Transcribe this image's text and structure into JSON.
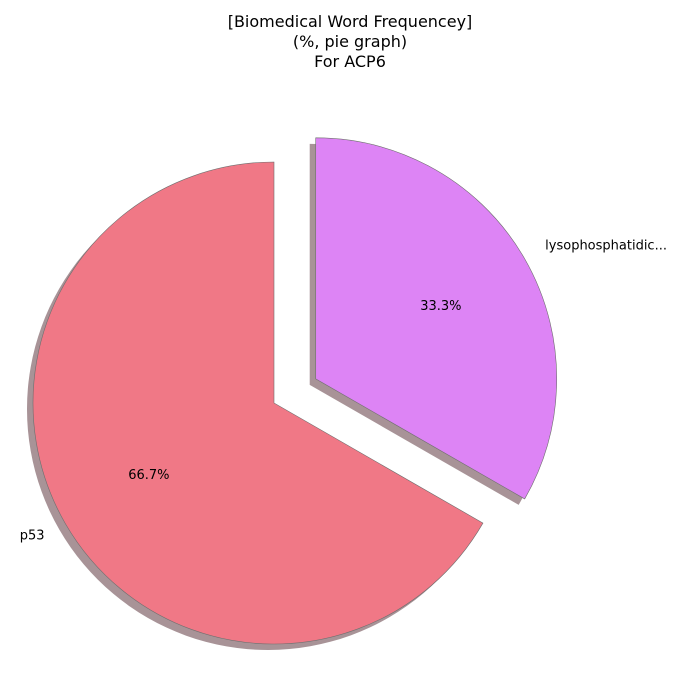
{
  "chart_data": {
    "type": "pie",
    "title_lines": [
      "[Biomedical Word Frequencey]",
      "(%, pie graph)",
      "For ACP6"
    ],
    "slices": [
      {
        "label": "p53",
        "value": 66.7,
        "pct_label": "66.7%",
        "color": "#f07886",
        "explode": 0.0
      },
      {
        "label": "lysophosphatidic...",
        "value": 33.3,
        "pct_label": "33.3%",
        "color": "#dd84f5",
        "explode": 0.2
      }
    ],
    "start_angle_deg": 90,
    "direction": "counterclockwise",
    "shadow": true,
    "shadow_color": "#a89397",
    "edge_color": "#6e6e6e"
  }
}
